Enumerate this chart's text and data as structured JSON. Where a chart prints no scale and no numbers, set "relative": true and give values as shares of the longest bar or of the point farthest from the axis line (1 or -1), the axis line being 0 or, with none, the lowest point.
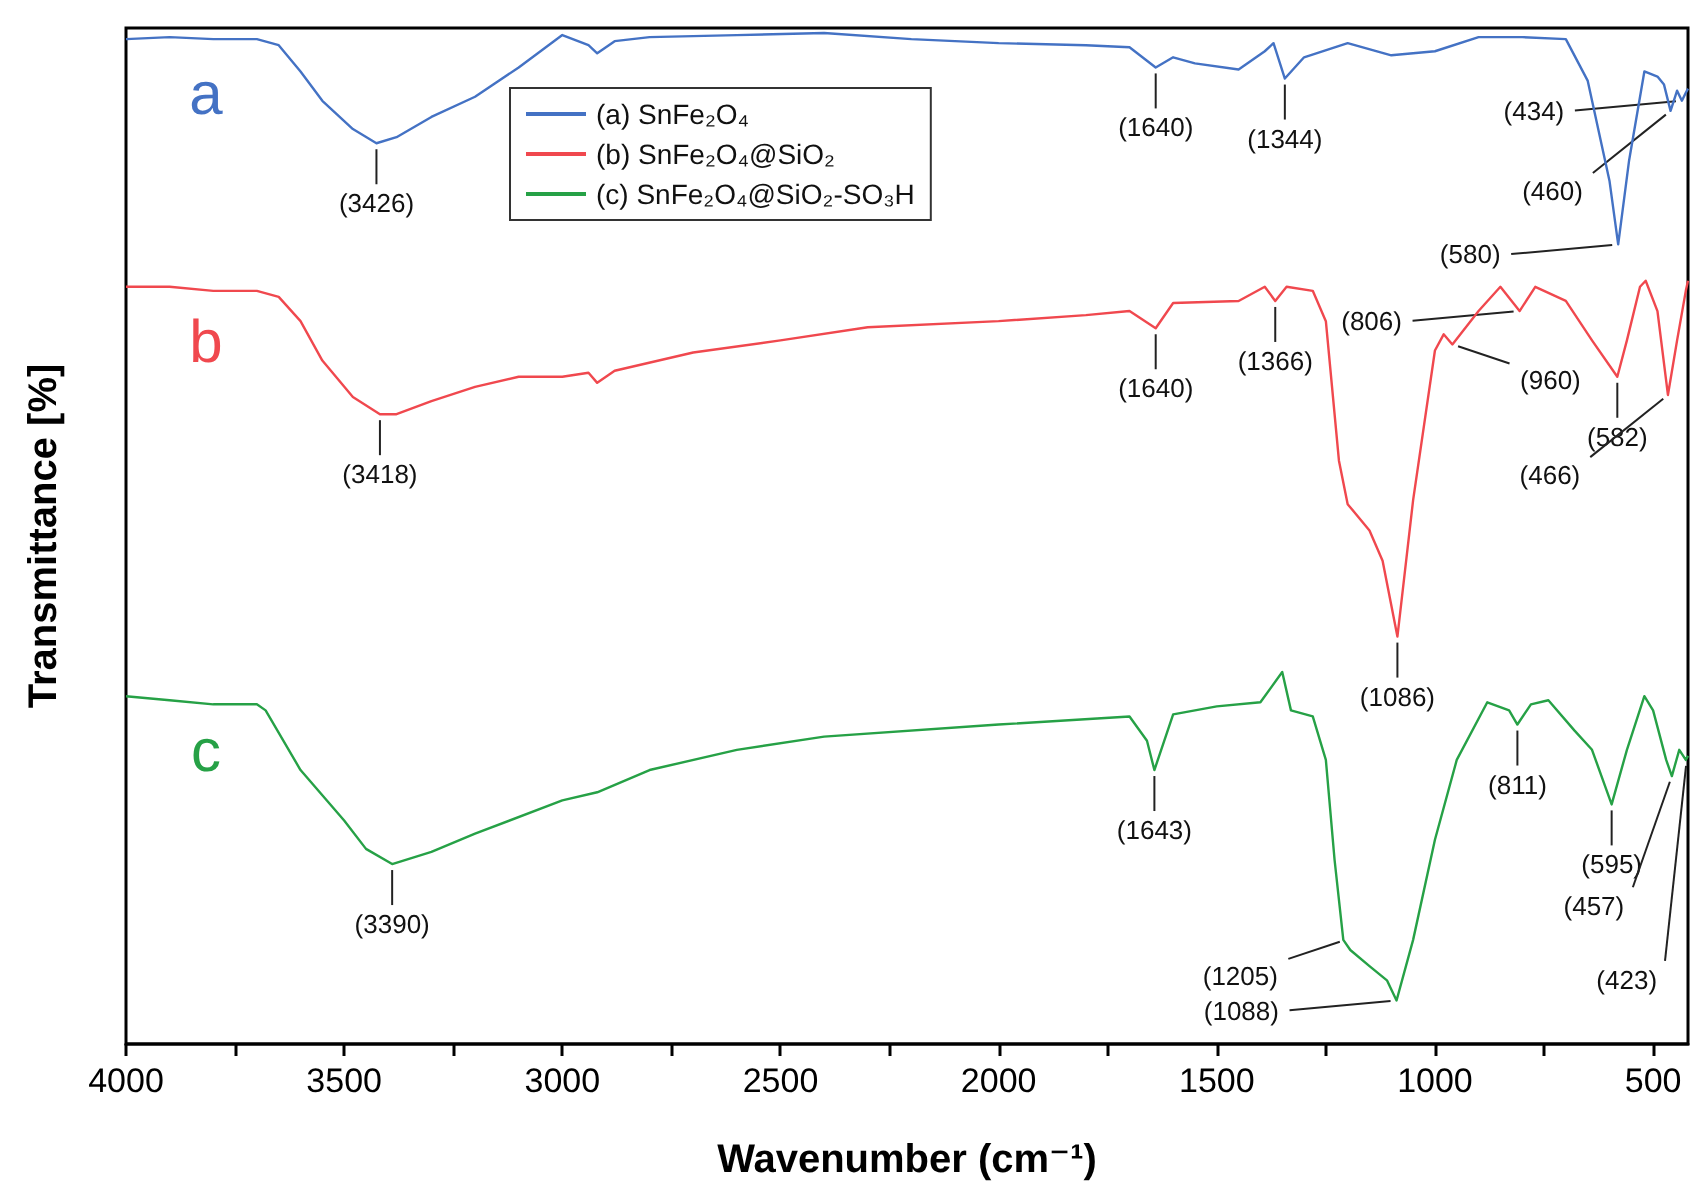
{
  "chart_data": {
    "type": "line",
    "relative": true,
    "xlabel": "Wavenumber (cm⁻¹)",
    "ylabel": "Transmittance [%]",
    "xlim": [
      4000,
      420
    ],
    "xticks": [
      4000,
      {
        "value": 3750,
        "label": null
      },
      3500,
      {
        "value": 3250,
        "label": null
      },
      3000,
      {
        "value": 2750,
        "label": null
      },
      2500,
      {
        "value": 2250,
        "label": null
      },
      2000,
      {
        "value": 1750,
        "label": null
      },
      1500,
      {
        "value": 1250,
        "label": null
      },
      1000,
      {
        "value": 750,
        "label": null
      },
      500
    ],
    "legend": "top",
    "grid": false,
    "series": [
      {
        "name": "(a) SnFe₂O₄",
        "color": "#4472c4",
        "x": [
          4000,
          3900,
          3800,
          3700,
          3650,
          3600,
          3550,
          3480,
          3426,
          3380,
          3300,
          3200,
          3100,
          3000,
          2940,
          2920,
          2880,
          2800,
          2600,
          2400,
          2200,
          2000,
          1800,
          1700,
          1640,
          1600,
          1550,
          1450,
          1390,
          1370,
          1344,
          1300,
          1200,
          1100,
          1000,
          900,
          800,
          700,
          650,
          600,
          580,
          555,
          520,
          490,
          475,
          460,
          445,
          434,
          425,
          420
        ],
        "values": [
          0.994,
          0.996,
          0.994,
          0.994,
          0.988,
          0.962,
          0.933,
          0.905,
          0.891,
          0.897,
          0.917,
          0.937,
          0.966,
          0.998,
          0.988,
          0.98,
          0.992,
          0.996,
          0.998,
          1.0,
          0.994,
          0.99,
          0.988,
          0.986,
          0.966,
          0.976,
          0.97,
          0.964,
          0.982,
          0.99,
          0.955,
          0.976,
          0.99,
          0.978,
          0.982,
          0.996,
          0.996,
          0.994,
          0.953,
          0.854,
          0.791,
          0.874,
          0.962,
          0.957,
          0.949,
          0.923,
          0.943,
          0.933,
          0.941,
          0.945
        ]
      },
      {
        "name": "(b) SnFe₂O₄@SiO₂",
        "color": "#f0484e",
        "x": [
          4000,
          3900,
          3800,
          3700,
          3650,
          3600,
          3550,
          3480,
          3418,
          3380,
          3300,
          3200,
          3100,
          3000,
          2940,
          2920,
          2880,
          2700,
          2500,
          2300,
          2000,
          1800,
          1700,
          1640,
          1600,
          1450,
          1390,
          1366,
          1340,
          1280,
          1250,
          1220,
          1200,
          1150,
          1120,
          1086,
          1050,
          1000,
          980,
          960,
          900,
          850,
          806,
          770,
          700,
          640,
          582,
          560,
          530,
          517,
          490,
          466,
          445,
          425,
          420
        ],
        "values": [
          0.749,
          0.749,
          0.745,
          0.745,
          0.739,
          0.715,
          0.676,
          0.64,
          0.623,
          0.623,
          0.636,
          0.65,
          0.66,
          0.66,
          0.664,
          0.654,
          0.666,
          0.684,
          0.696,
          0.709,
          0.715,
          0.721,
          0.725,
          0.708,
          0.733,
          0.735,
          0.749,
          0.735,
          0.749,
          0.745,
          0.715,
          0.577,
          0.534,
          0.508,
          0.478,
          0.403,
          0.538,
          0.686,
          0.702,
          0.692,
          0.725,
          0.749,
          0.725,
          0.749,
          0.735,
          0.696,
          0.66,
          0.696,
          0.749,
          0.755,
          0.725,
          0.642,
          0.696,
          0.745,
          0.755
        ]
      },
      {
        "name": "(c) SnFe₂O₄@SiO₂-SO₃H",
        "color": "#26a146",
        "x": [
          4000,
          3900,
          3800,
          3700,
          3680,
          3600,
          3500,
          3450,
          3390,
          3300,
          3200,
          3000,
          2920,
          2800,
          2600,
          2400,
          2000,
          1700,
          1660,
          1643,
          1600,
          1500,
          1400,
          1350,
          1330,
          1280,
          1250,
          1230,
          1210,
          1194,
          1150,
          1110,
          1088,
          1050,
          1000,
          950,
          880,
          830,
          811,
          780,
          740,
          680,
          640,
          595,
          560,
          520,
          500,
          470,
          457,
          440,
          425,
          420
        ],
        "values": [
          0.344,
          0.34,
          0.336,
          0.336,
          0.33,
          0.271,
          0.221,
          0.193,
          0.178,
          0.19,
          0.208,
          0.241,
          0.249,
          0.271,
          0.291,
          0.304,
          0.316,
          0.324,
          0.3,
          0.271,
          0.326,
          0.334,
          0.338,
          0.368,
          0.33,
          0.324,
          0.281,
          0.182,
          0.103,
          0.093,
          0.077,
          0.063,
          0.043,
          0.103,
          0.202,
          0.281,
          0.338,
          0.33,
          0.316,
          0.336,
          0.34,
          0.31,
          0.291,
          0.237,
          0.291,
          0.344,
          0.33,
          0.281,
          0.265,
          0.291,
          0.281,
          0.285
        ]
      }
    ],
    "annotations": [
      "a",
      "b",
      "c",
      {
        "text": "(3426)",
        "x": 3426,
        "y": 0.891
      },
      {
        "text": "(1640)",
        "x": 1640,
        "y": 0.966
      },
      {
        "text": "(1344)",
        "x": 1344,
        "y": 0.955
      },
      {
        "text": "(580)",
        "x": 580,
        "y": 0.791
      },
      {
        "text": "(460)",
        "x": 460,
        "y": 0.923
      },
      {
        "text": "(434)",
        "x": 434,
        "y": 0.933
      },
      {
        "text": "(3418)",
        "x": 3418,
        "y": 0.623
      },
      {
        "text": "(1640)",
        "x": 1640,
        "y": 0.708
      },
      {
        "text": "(1366)",
        "x": 1366,
        "y": 0.735
      },
      {
        "text": "(1086)",
        "x": 1086,
        "y": 0.403
      },
      {
        "text": "(960)",
        "x": 960,
        "y": 0.692
      },
      {
        "text": "(806)",
        "x": 806,
        "y": 0.725
      },
      {
        "text": "(582)",
        "x": 582,
        "y": 0.66
      },
      {
        "text": "(466)",
        "x": 466,
        "y": 0.642
      },
      {
        "text": "(3390)",
        "x": 3390,
        "y": 0.178
      },
      {
        "text": "(1643)",
        "x": 1643,
        "y": 0.271
      },
      {
        "text": "(1205)",
        "x": 1205,
        "y": 0.103
      },
      {
        "text": "(1088)",
        "x": 1088,
        "y": 0.043
      },
      {
        "text": "(811)",
        "x": 811,
        "y": 0.316
      },
      {
        "text": "(595)",
        "x": 595,
        "y": 0.237
      },
      {
        "text": "(457)",
        "x": 457,
        "y": 0.265
      },
      {
        "text": "(423)",
        "x": 423,
        "y": 0.281
      }
    ]
  }
}
